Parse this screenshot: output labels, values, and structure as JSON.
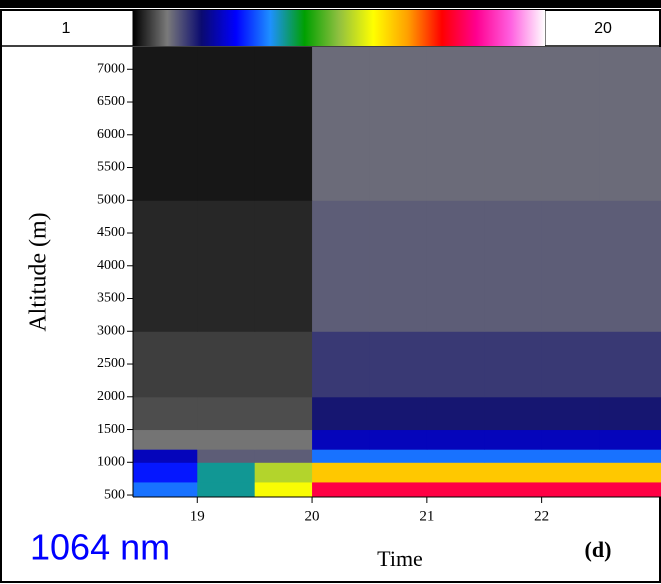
{
  "chart_data": {
    "type": "heatmap",
    "colorbar_labels": [
      "1",
      "20"
    ],
    "colorbar_range": [
      1,
      20
    ],
    "colormap": [
      "#000000",
      "#7a7a7a",
      "#0a0a70",
      "#0000ff",
      "#1e90ff",
      "#00a000",
      "#90c040",
      "#ffff00",
      "#ffa000",
      "#ff0000",
      "#ff0090",
      "#ff60e0",
      "#ffffff"
    ],
    "xlabel": "Time",
    "ylabel": "Altitude (m)",
    "annotations": [
      "1064 nm",
      "(d)"
    ],
    "xlim": [
      18.44,
      23.04
    ],
    "ylim": [
      470,
      7340
    ],
    "xticks": [
      19,
      20,
      21,
      22
    ],
    "yticks": [
      500,
      1000,
      1500,
      2000,
      2500,
      3000,
      3500,
      4000,
      4500,
      5000,
      5500,
      6000,
      6500,
      7000
    ],
    "x_edges": [
      18.44,
      19,
      19.5,
      20,
      20.5,
      21,
      21.5,
      22,
      22.5,
      23.04
    ],
    "y_edges": [
      470,
      700,
      1000,
      1200,
      1500,
      2000,
      3000,
      5000,
      7340
    ],
    "z": [
      [
        7,
        8,
        12,
        16,
        16,
        16,
        16,
        16,
        16
      ],
      [
        6,
        8,
        11,
        13,
        13,
        13,
        13,
        13,
        13
      ],
      [
        5,
        3,
        3,
        7,
        7,
        7,
        7,
        7,
        7
      ],
      [
        2.5,
        2.5,
        2.5,
        5,
        5,
        5,
        5,
        5,
        5
      ],
      [
        2,
        2,
        2,
        4,
        4,
        4,
        4,
        4,
        4
      ],
      [
        1.8,
        1.8,
        1.8,
        3.5,
        3.5,
        3.5,
        3.5,
        3.5,
        3.5
      ],
      [
        1.5,
        1.5,
        1.5,
        3,
        3,
        3,
        3,
        3,
        3
      ],
      [
        1.3,
        1.3,
        1.3,
        2.8,
        2.8,
        2.8,
        2.8,
        2.8,
        2.8
      ]
    ]
  }
}
